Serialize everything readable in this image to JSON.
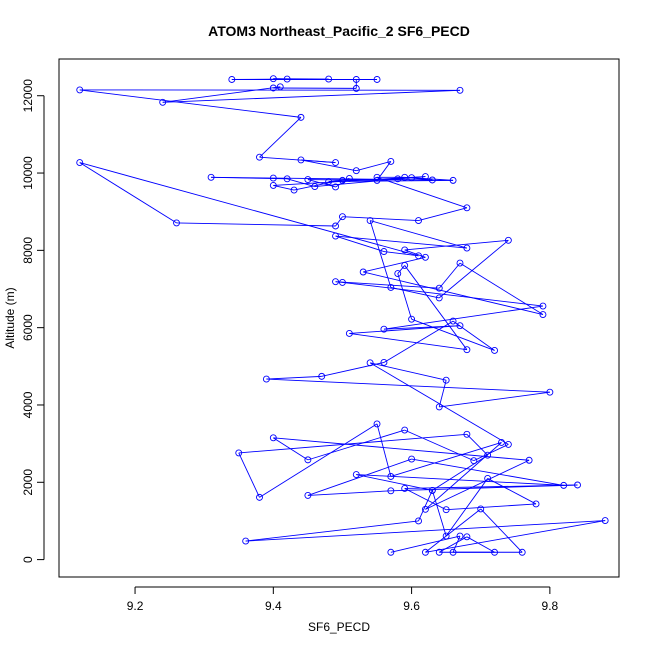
{
  "chart_data": {
    "type": "line",
    "title": "ATOM3 Northeast_Pacific_2 SF6_PECD",
    "xlabel": "SF6_PECD",
    "ylabel": "Altitude (m)",
    "xlim": [
      9.09,
      9.9
    ],
    "ylim": [
      -450,
      12950
    ],
    "x_ticks": [
      9.2,
      9.4,
      9.6,
      9.8
    ],
    "x_tick_labels": [
      "9.2",
      "9.4",
      "9.6",
      "9.8"
    ],
    "y_ticks": [
      0,
      2000,
      4000,
      6000,
      8000,
      10000,
      12000
    ],
    "y_tick_labels": [
      "0",
      "2000",
      "4000",
      "6000",
      "8000",
      "10000",
      "12000"
    ],
    "grid": false,
    "legend": "none",
    "marker": "open-circle",
    "colors": {
      "series": "#0000ff",
      "axis": "#000000",
      "background": "#ffffff"
    },
    "series": [
      {
        "x": [
          9.57,
          9.67,
          9.66,
          9.72,
          9.68,
          9.64,
          9.76,
          9.7,
          9.62,
          9.88,
          9.36,
          9.61,
          9.63,
          9.65,
          9.71,
          9.78,
          9.65,
          9.59,
          9.84,
          9.57,
          9.45,
          9.6,
          9.82,
          9.52,
          9.63,
          9.71,
          9.68,
          9.35,
          9.38,
          9.55,
          9.57,
          9.73,
          9.62,
          9.77,
          9.4,
          9.45,
          9.59,
          9.69,
          9.74,
          9.54,
          9.65,
          9.64,
          9.8,
          9.39,
          9.47,
          9.56,
          9.66,
          9.72,
          9.6,
          9.58,
          9.59,
          9.68,
          9.51,
          9.67,
          9.56,
          9.79,
          9.5,
          9.49,
          9.64,
          9.67,
          9.79,
          9.53,
          9.62,
          9.59,
          9.74,
          9.64,
          9.57,
          9.54,
          9.68,
          9.49,
          9.56,
          9.61,
          9.12,
          9.26,
          9.49,
          9.5,
          9.61,
          9.68,
          9.55,
          9.59,
          9.63,
          9.4,
          9.31,
          9.42,
          9.46,
          9.6,
          9.66,
          9.48,
          9.5,
          9.58,
          9.62,
          9.4,
          9.43,
          9.51,
          9.49,
          9.45,
          9.55,
          9.57,
          9.52,
          9.44,
          9.49,
          9.38,
          9.44,
          9.12,
          9.67,
          9.24,
          9.41,
          9.4,
          9.52,
          9.52,
          9.55,
          9.34,
          9.42,
          9.4,
          9.48
        ],
        "y": [
          190,
          610,
          190,
          190,
          590,
          190,
          190,
          1310,
          190,
          1010,
          480,
          1000,
          1790,
          610,
          2100,
          1440,
          1290,
          1840,
          1930,
          1780,
          1660,
          2600,
          1920,
          2200,
          1790,
          2700,
          3240,
          2760,
          1610,
          3510,
          2150,
          3030,
          1300,
          2570,
          3150,
          2580,
          3350,
          2560,
          2980,
          5090,
          4640,
          3950,
          4330,
          4670,
          4740,
          5100,
          6170,
          5410,
          6220,
          7400,
          7610,
          5430,
          5850,
          6050,
          5960,
          6560,
          7170,
          7190,
          7020,
          7670,
          6340,
          7440,
          7820,
          8010,
          8260,
          6770,
          7040,
          8770,
          8060,
          8370,
          7970,
          7860,
          10270,
          8710,
          8630,
          8870,
          8770,
          9100,
          9890,
          9890,
          9820,
          9870,
          9890,
          9850,
          9650,
          9880,
          9810,
          9780,
          9810,
          9850,
          9910,
          9680,
          9560,
          9860,
          9640,
          9830,
          9810,
          10300,
          10060,
          10340,
          10270,
          10410,
          11440,
          12150,
          12140,
          11830,
          12230,
          12200,
          12190,
          12420,
          12420,
          12420,
          12430,
          12440,
          12430
        ]
      }
    ]
  }
}
